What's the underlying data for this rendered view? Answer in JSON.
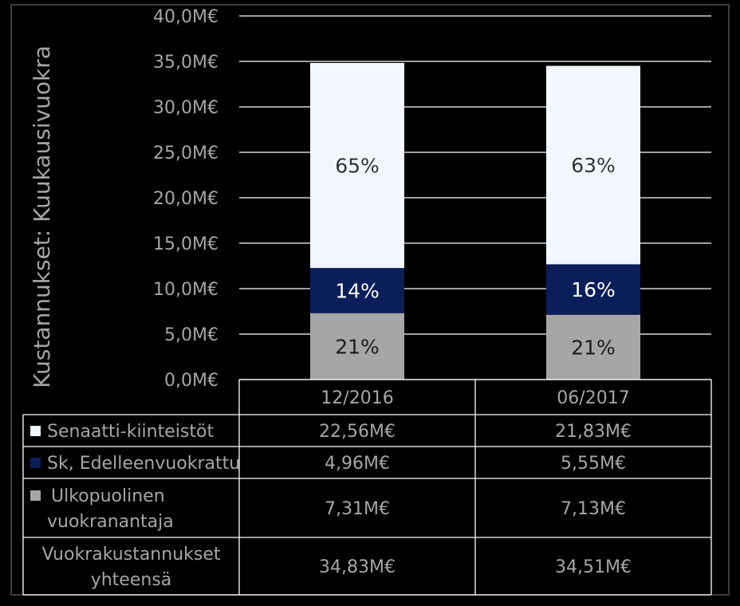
{
  "chart_data": {
    "type": "bar",
    "stacked": true,
    "ylabel": "Kustannukset: Kuukausivuokra",
    "ylim": [
      0,
      40
    ],
    "yticks": [
      "0,0M€",
      "5,0M€",
      "10,0M€",
      "15,0M€",
      "20,0M€",
      "25,0M€",
      "30,0M€",
      "35,0M€",
      "40,0M€"
    ],
    "categories": [
      "12/2016",
      "06/2017"
    ],
    "series": [
      {
        "name": "Ulkopuolinen vuokranantaja",
        "values": [
          7.31,
          7.13
        ],
        "labels": [
          "21%",
          "21%"
        ],
        "color": "#a6a6a6",
        "label_color": "#1a1a1a"
      },
      {
        "name": "Sk, Edelleenvuokrattu",
        "values": [
          4.96,
          5.55
        ],
        "labels": [
          "14%",
          "16%"
        ],
        "color": "#0a1e5a",
        "label_color": "#ffffff"
      },
      {
        "name": "Senaatti-kiinteistöt",
        "values": [
          22.56,
          21.83
        ],
        "labels": [
          "65%",
          "63%"
        ],
        "color": "#f1f7fd",
        "label_color": "#333333"
      }
    ],
    "grid": true
  },
  "table": {
    "header": [
      "12/2016",
      "06/2017"
    ],
    "rows": [
      {
        "label_lines": [
          "Senaatti-kiinteistöt"
        ],
        "values": [
          "22,56M€",
          "21,83M€"
        ],
        "marker_color": "#f1f7fd"
      },
      {
        "label_lines": [
          "Sk, Edelleenvuokrattu"
        ],
        "values": [
          "4,96M€",
          "5,55M€"
        ],
        "marker_color": "#0a1e5a"
      },
      {
        "label_lines": [
          "Ulkopuolinen",
          "vuokranantaja"
        ],
        "values": [
          "7,31M€",
          "7,13M€"
        ],
        "marker_color": "#a6a6a6"
      },
      {
        "label_lines": [
          "Vuokrakustannukset",
          "yhteensä"
        ],
        "values": [
          "34,83M€",
          "34,51M€"
        ]
      }
    ]
  }
}
